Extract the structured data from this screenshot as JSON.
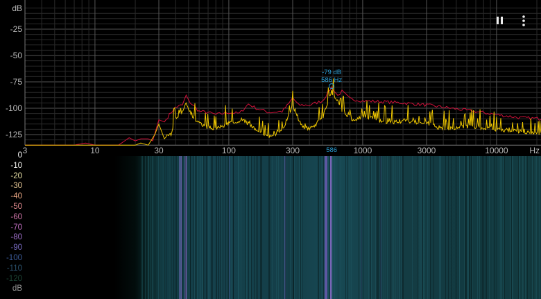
{
  "chart_data": {
    "type": "line",
    "y_unit": "dB",
    "x_unit": "Hz",
    "x_scale": "log",
    "xlim": [
      3,
      22000
    ],
    "ylim": [
      -135,
      0
    ],
    "grid": true,
    "y_ticks": [
      "-25",
      "-50",
      "-75",
      "-100",
      "-125"
    ],
    "y_tick_values": [
      -25,
      -50,
      -75,
      -100,
      -125
    ],
    "x_ticks": [
      "3",
      "10",
      "30",
      "100",
      "300",
      "1000",
      "3000",
      "10000"
    ],
    "x_tick_values": [
      3,
      10,
      30,
      100,
      300,
      1000,
      3000,
      10000
    ],
    "series": [
      {
        "color": "#d0103a",
        "points": [
          [
            3,
            -135
          ],
          [
            7,
            -135
          ],
          [
            8.5,
            -133
          ],
          [
            10,
            -135
          ],
          [
            15,
            -135
          ],
          [
            18,
            -128
          ],
          [
            20,
            -131
          ],
          [
            22,
            -129
          ],
          [
            25,
            -129
          ],
          [
            27,
            -131
          ],
          [
            30,
            -111
          ],
          [
            33,
            -113
          ],
          [
            37,
            -104
          ],
          [
            40,
            -99
          ],
          [
            45,
            -97
          ],
          [
            48,
            -88
          ],
          [
            50,
            -93
          ],
          [
            55,
            -98
          ],
          [
            60,
            -103
          ],
          [
            70,
            -104
          ],
          [
            80,
            -106
          ],
          [
            100,
            -104
          ],
          [
            120,
            -105
          ],
          [
            140,
            -96
          ],
          [
            160,
            -100
          ],
          [
            200,
            -104
          ],
          [
            250,
            -103
          ],
          [
            280,
            -96
          ],
          [
            300,
            -90
          ],
          [
            330,
            -97
          ],
          [
            400,
            -97
          ],
          [
            500,
            -93
          ],
          [
            586,
            -80
          ],
          [
            650,
            -88
          ],
          [
            700,
            -84
          ],
          [
            800,
            -91
          ],
          [
            1000,
            -93
          ],
          [
            1500,
            -94
          ],
          [
            2000,
            -95
          ],
          [
            3000,
            -97
          ],
          [
            4000,
            -99
          ],
          [
            6000,
            -102
          ],
          [
            10000,
            -106
          ],
          [
            15000,
            -109
          ],
          [
            22000,
            -110
          ]
        ]
      },
      {
        "color": "#f0c800",
        "points": [
          [
            3,
            -135
          ],
          [
            20,
            -135
          ],
          [
            22,
            -133
          ],
          [
            25,
            -135
          ],
          [
            28,
            -125
          ],
          [
            30,
            -115
          ],
          [
            33,
            -129
          ],
          [
            37,
            -122
          ],
          [
            40,
            -110
          ],
          [
            45,
            -100
          ],
          [
            48,
            -93
          ],
          [
            55,
            -108
          ],
          [
            65,
            -115
          ],
          [
            80,
            -118
          ],
          [
            100,
            -112
          ],
          [
            130,
            -110
          ],
          [
            160,
            -118
          ],
          [
            200,
            -125
          ],
          [
            250,
            -120
          ],
          [
            300,
            -95
          ],
          [
            350,
            -115
          ],
          [
            400,
            -118
          ],
          [
            500,
            -108
          ],
          [
            586,
            -82
          ],
          [
            700,
            -100
          ],
          [
            850,
            -110
          ],
          [
            1000,
            -105
          ],
          [
            1500,
            -112
          ],
          [
            2000,
            -110
          ],
          [
            3000,
            -112
          ],
          [
            4000,
            -118
          ],
          [
            6000,
            -115
          ],
          [
            10000,
            -118
          ],
          [
            15000,
            -120
          ],
          [
            22000,
            -122
          ]
        ]
      }
    ],
    "marker": {
      "db_label": "-79 dB",
      "hz_label": "586 Hz",
      "axis_label": "586",
      "hz": 586,
      "db": -79,
      "color": "#2a9fd6"
    }
  },
  "spectrogram": {
    "legend": [
      {
        "label": "0",
        "color": "#ffffff"
      },
      {
        "label": "-10",
        "color": "#f4f4f0"
      },
      {
        "label": "-20",
        "color": "#ece4a8"
      },
      {
        "label": "-30",
        "color": "#eccc98"
      },
      {
        "label": "-40",
        "color": "#eca884"
      },
      {
        "label": "-50",
        "color": "#e48c90"
      },
      {
        "label": "-60",
        "color": "#d478ac"
      },
      {
        "label": "-70",
        "color": "#c470c4"
      },
      {
        "label": "-80",
        "color": "#a070cc"
      },
      {
        "label": "-90",
        "color": "#7a6cc4"
      },
      {
        "label": "-100",
        "color": "#3c5c9c"
      },
      {
        "label": "-110",
        "color": "#2c5470"
      },
      {
        "label": "-120",
        "color": "#1c4434"
      },
      {
        "label": "dB",
        "color": "#9a9a9a"
      }
    ]
  },
  "controls": {
    "pause_icon": "pause-icon",
    "menu_icon": "more-vertical-icon"
  }
}
